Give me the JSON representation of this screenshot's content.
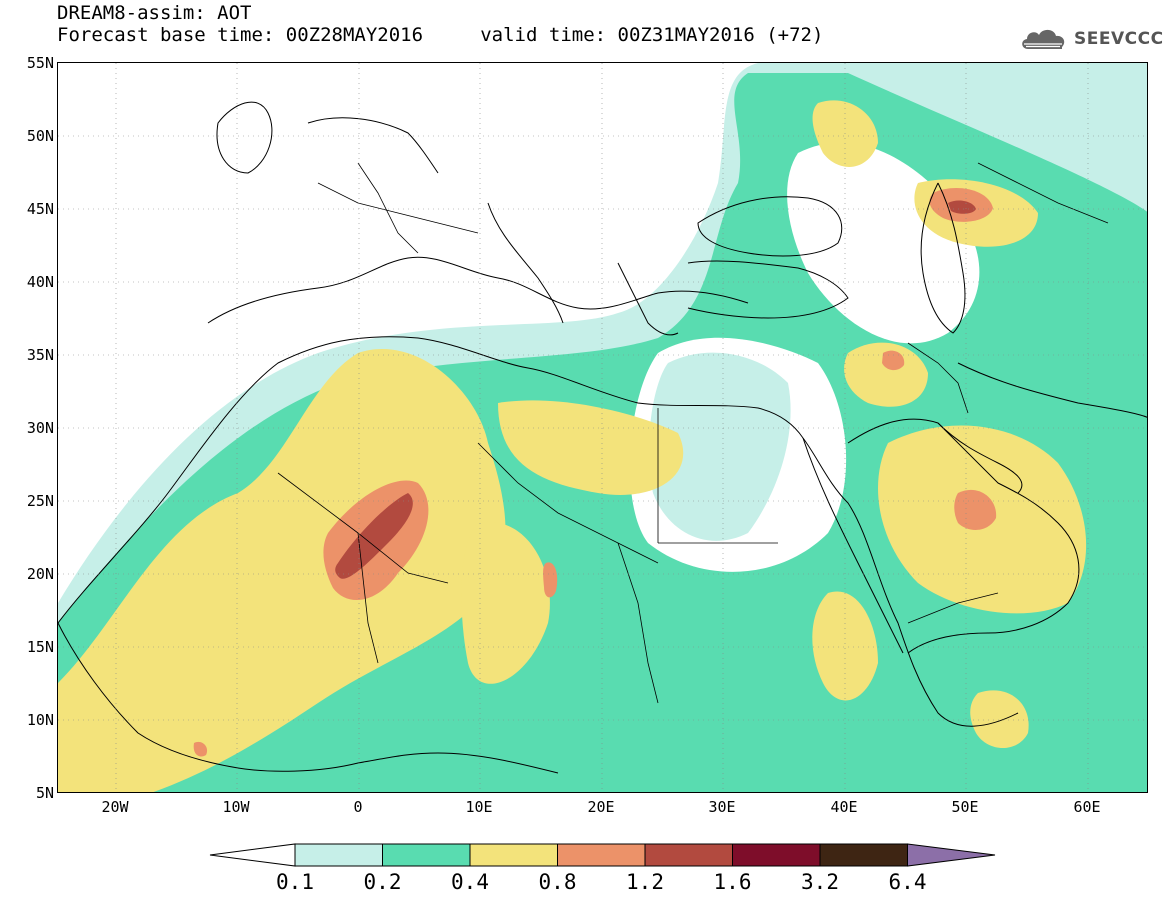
{
  "header": {
    "title_line1": "DREAM8-assim: AOT",
    "title_line2": "Forecast base time: 00Z28MAY2016     valid time: 00Z31MAY2016 (+72)"
  },
  "logo": {
    "text": "SEEVCCC",
    "icon": "cloud-icon"
  },
  "map": {
    "lat_labels": [
      "55N",
      "50N",
      "45N",
      "40N",
      "35N",
      "30N",
      "25N",
      "20N",
      "15N",
      "10N",
      "5N"
    ],
    "lon_labels": [
      "20W",
      "10W",
      "0",
      "10E",
      "20E",
      "30E",
      "40E",
      "50E",
      "60E"
    ],
    "colors": {
      "c01": "#c6efe8",
      "c02": "#59dcb0",
      "c04": "#f3e37b",
      "c08": "#ec9269",
      "c12": "#b24a3f",
      "c16": "#7e0d2a",
      "c32": "#3e2513",
      "c64": "#8c6fa8",
      "land_outline": "#000000"
    }
  },
  "colorbar": {
    "labels": [
      "0.1",
      "0.2",
      "0.4",
      "0.8",
      "1.2",
      "1.6",
      "3.2",
      "6.4"
    ],
    "colors": [
      "#c6efe8",
      "#59dcb0",
      "#f3e37b",
      "#ec9269",
      "#b24a3f",
      "#7e0d2a",
      "#3e2513"
    ],
    "under_color": "#ffffff",
    "over_color": "#8c6fa8"
  }
}
